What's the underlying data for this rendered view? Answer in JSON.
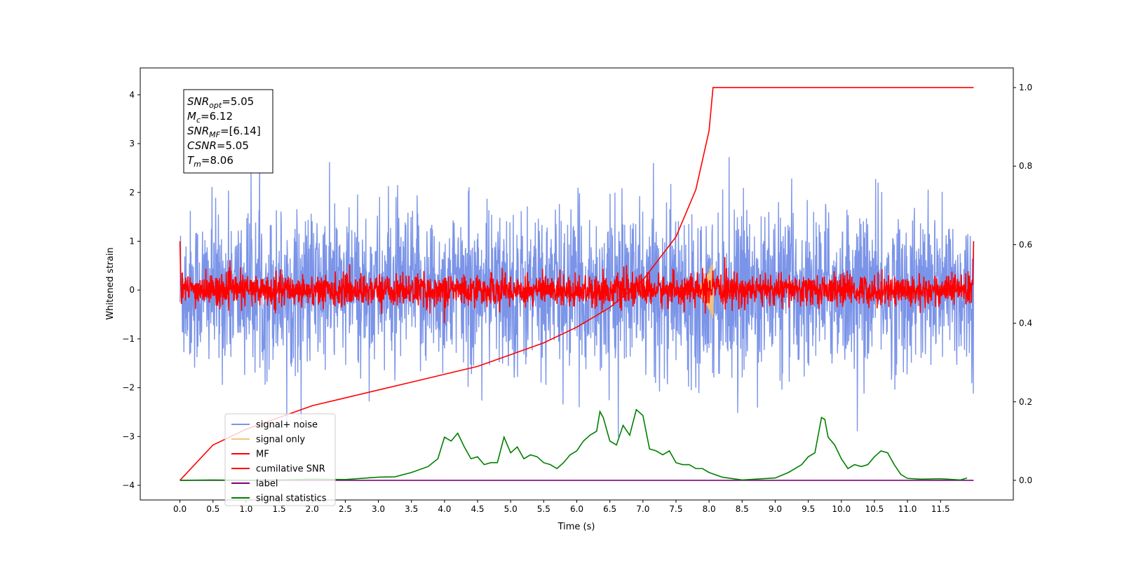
{
  "chart_data": {
    "type": "line",
    "xlabel": "Time (s)",
    "ylabel": "Whitened strain",
    "xlim": [
      -0.6,
      12.6
    ],
    "ylim": [
      -4.3,
      4.55
    ],
    "y2lim": [
      -0.05,
      1.05
    ],
    "x_ticks": [
      "0.0",
      "0.5",
      "1.0",
      "1.5",
      "2.0",
      "2.5",
      "3.0",
      "3.5",
      "4.0",
      "4.5",
      "5.0",
      "5.5",
      "6.0",
      "6.5",
      "7.0",
      "7.5",
      "8.0",
      "8.5",
      "9.0",
      "9.5",
      "10.0",
      "10.5",
      "11.0",
      "11.5"
    ],
    "y_ticks": [
      "4",
      "3",
      "2",
      "1",
      "0",
      "−1",
      "−2",
      "−3",
      "−4"
    ],
    "y2_ticks": [
      "1.0",
      "0.8",
      "0.6",
      "0.4",
      "0.2",
      "0.0"
    ],
    "legend_position": "lower-left",
    "annotation": {
      "lines": [
        {
          "base": "SNR",
          "sub": "opt",
          "value": "=5.05"
        },
        {
          "base": "M",
          "sub": "c",
          "value": "=6.12"
        },
        {
          "base": "SNR",
          "sub": "MF",
          "value": "=[6.14]"
        },
        {
          "base": "CSNR",
          "sub": "",
          "value": "=5.05"
        },
        {
          "base": "T",
          "sub": "m",
          "value": "=8.06"
        }
      ]
    },
    "series": [
      {
        "name": "signal+ noise",
        "color": "#7b94e8",
        "axis": "left",
        "description_values": {
          "noise_sigma": 0.8,
          "x_range": [
            0.0,
            12.0
          ]
        }
      },
      {
        "name": "signal only",
        "color": "#f5c27a",
        "axis": "left",
        "description_values": {
          "peak_time": 8.06,
          "peak_amplitude": 0.65
        }
      },
      {
        "name": "MF",
        "color": "#ff0000",
        "axis": "left",
        "description_values": {
          "noise_sigma": 0.16,
          "x_range": [
            0.0,
            12.0
          ]
        }
      },
      {
        "name": "cumilative SNR",
        "color": "#ff0000",
        "axis": "right",
        "x": [
          0.0,
          0.5,
          1.0,
          1.5,
          2.0,
          2.5,
          3.0,
          3.5,
          4.0,
          4.5,
          5.0,
          5.5,
          6.0,
          6.5,
          7.0,
          7.5,
          7.8,
          8.0,
          8.06,
          12.0
        ],
        "values": [
          0.0,
          0.09,
          0.13,
          0.16,
          0.19,
          0.21,
          0.23,
          0.25,
          0.27,
          0.29,
          0.32,
          0.35,
          0.39,
          0.44,
          0.51,
          0.62,
          0.74,
          0.89,
          1.0,
          1.0
        ]
      },
      {
        "name": "label",
        "color": "#800080",
        "axis": "right",
        "x": [
          0.0,
          12.0
        ],
        "values": [
          0.0,
          0.0
        ]
      },
      {
        "name": "signal statistics",
        "color": "#008000",
        "axis": "right",
        "x": [
          0.0,
          0.5,
          1.0,
          1.5,
          2.0,
          2.5,
          3.0,
          3.25,
          3.5,
          3.75,
          3.9,
          4.0,
          4.1,
          4.2,
          4.3,
          4.4,
          4.5,
          4.6,
          4.7,
          4.8,
          4.9,
          5.0,
          5.1,
          5.2,
          5.3,
          5.4,
          5.5,
          5.6,
          5.7,
          5.8,
          5.9,
          6.0,
          6.1,
          6.2,
          6.3,
          6.35,
          6.4,
          6.5,
          6.6,
          6.7,
          6.8,
          6.9,
          7.0,
          7.1,
          7.2,
          7.3,
          7.4,
          7.5,
          7.6,
          7.7,
          7.8,
          7.9,
          8.0,
          8.2,
          8.5,
          9.0,
          9.2,
          9.4,
          9.5,
          9.6,
          9.7,
          9.75,
          9.8,
          9.9,
          10.0,
          10.1,
          10.2,
          10.3,
          10.4,
          10.5,
          10.6,
          10.7,
          10.8,
          10.9,
          11.0,
          11.2,
          11.5,
          11.8,
          11.9
        ],
        "values": [
          0.0,
          0.001,
          0.0,
          0.001,
          0.003,
          0.002,
          0.008,
          0.009,
          0.02,
          0.035,
          0.055,
          0.11,
          0.1,
          0.12,
          0.085,
          0.055,
          0.06,
          0.04,
          0.045,
          0.045,
          0.11,
          0.07,
          0.085,
          0.055,
          0.065,
          0.06,
          0.045,
          0.04,
          0.03,
          0.045,
          0.065,
          0.075,
          0.1,
          0.115,
          0.125,
          0.175,
          0.16,
          0.1,
          0.09,
          0.14,
          0.115,
          0.18,
          0.165,
          0.08,
          0.075,
          0.065,
          0.075,
          0.045,
          0.04,
          0.04,
          0.03,
          0.03,
          0.02,
          0.008,
          0.001,
          0.006,
          0.02,
          0.04,
          0.06,
          0.07,
          0.16,
          0.155,
          0.11,
          0.09,
          0.055,
          0.03,
          0.04,
          0.035,
          0.04,
          0.06,
          0.075,
          0.07,
          0.04,
          0.015,
          0.005,
          0.003,
          0.004,
          0.001,
          0.006
        ]
      }
    ]
  }
}
